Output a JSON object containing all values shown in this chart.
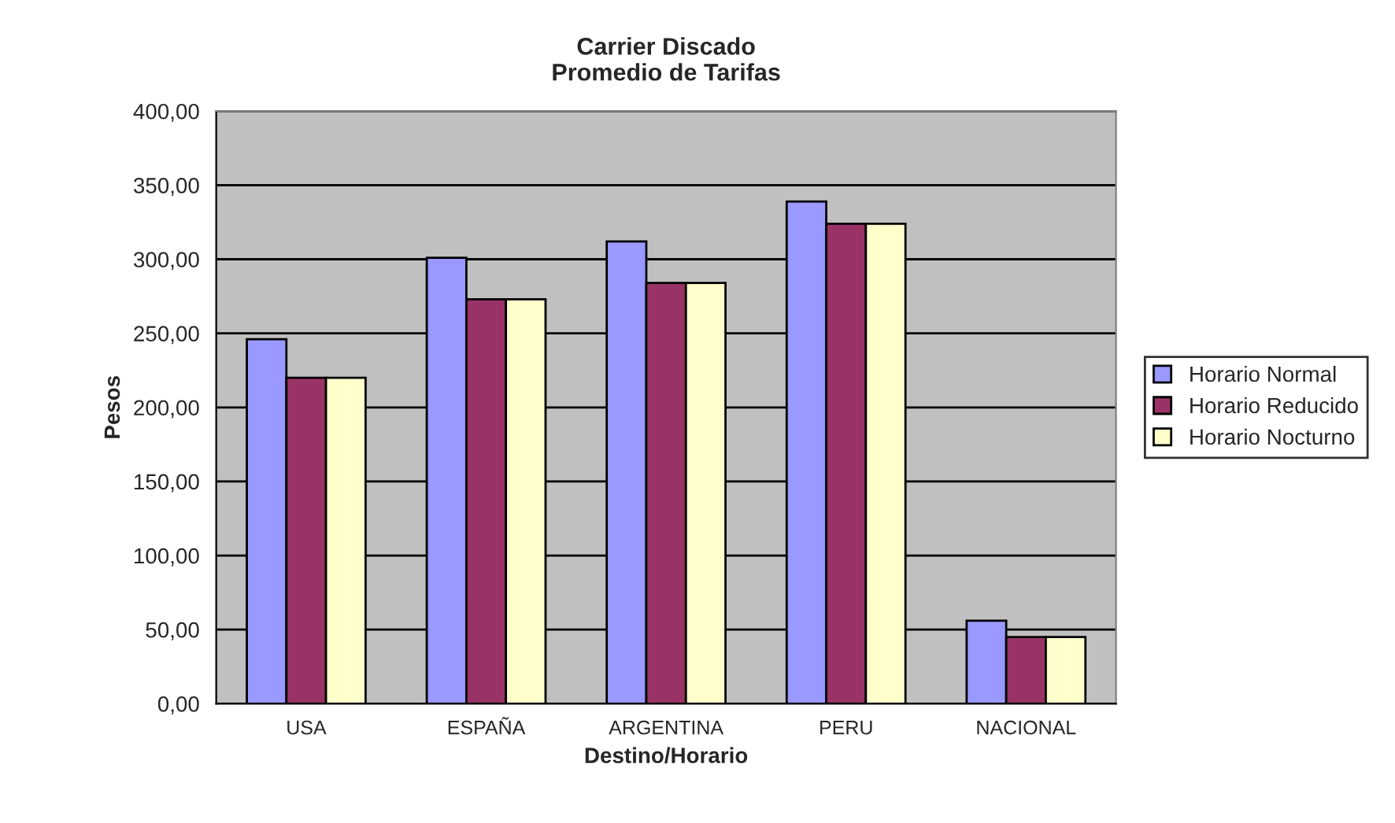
{
  "chart_data": {
    "type": "bar",
    "title": "Carrier Discado\nPromedio de Tarifas",
    "xlabel": "Destino/Horario",
    "ylabel": "Pesos",
    "categories": [
      "USA",
      "ESPAÑA",
      "ARGENTINA",
      "PERU",
      "NACIONAL"
    ],
    "series": [
      {
        "name": "Horario Normal",
        "color": "#9999ff",
        "values": [
          246,
          301,
          312,
          339,
          56
        ]
      },
      {
        "name": "Horario Reducido",
        "color": "#993366",
        "values": [
          220,
          273,
          284,
          324,
          45
        ]
      },
      {
        "name": "Horario Nocturno",
        "color": "#ffffcc",
        "values": [
          220,
          273,
          284,
          324,
          45
        ]
      }
    ],
    "ylim": [
      0,
      400
    ],
    "yticks": [
      {
        "value": 0,
        "label": "0,00"
      },
      {
        "value": 50,
        "label": "50,00"
      },
      {
        "value": 100,
        "label": "100,00"
      },
      {
        "value": 150,
        "label": "150,00"
      },
      {
        "value": 200,
        "label": "200,00"
      },
      {
        "value": 250,
        "label": "250,00"
      },
      {
        "value": 300,
        "label": "300,00"
      },
      {
        "value": 350,
        "label": "350,00"
      },
      {
        "value": 400,
        "label": "400,00"
      }
    ],
    "grid": "y",
    "legend": "right"
  }
}
